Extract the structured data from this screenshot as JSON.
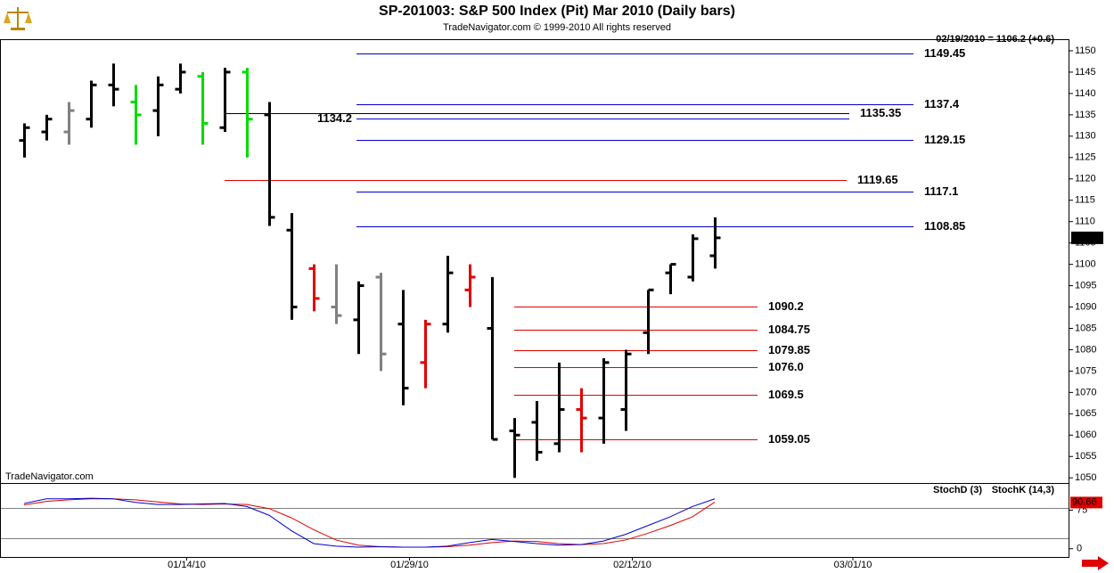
{
  "chart_data": {
    "type": "ohlc",
    "title": "SP-201003:  S&P 500 Index (Pit) Mar 2010  (Daily bars)",
    "subtitle": "TradeNavigator.com © 1999-2010 All rights reserved",
    "watermark": "TradeNavigator.com",
    "last_quote": "02/19/2010 = 1106.2 (+0.6)",
    "xlim": [
      -1.08,
      46.92
    ],
    "xticks": [
      {
        "value": 7.3,
        "label": "01/14/10"
      },
      {
        "value": 17.3,
        "label": "01/29/10"
      },
      {
        "value": 27.3,
        "label": "02/12/10"
      },
      {
        "value": 37.2,
        "label": "03/01/10"
      }
    ],
    "ylim": [
      1049,
      1152.5
    ],
    "yticks": [
      1050,
      1055,
      1060,
      1065,
      1070,
      1075,
      1080,
      1085,
      1090,
      1095,
      1100,
      1105,
      1110,
      1115,
      1120,
      1125,
      1130,
      1135,
      1140,
      1145,
      1150
    ],
    "bars": {
      "x": [
        0,
        1,
        2,
        3,
        4,
        5,
        6,
        7,
        8,
        9,
        10,
        11,
        12,
        13,
        14,
        15,
        16,
        17,
        18,
        19,
        20,
        21,
        22,
        23,
        24,
        25,
        26,
        27,
        28,
        29,
        30,
        31
      ],
      "open": [
        1129,
        1131,
        1131,
        1134,
        1142,
        1138,
        1136,
        1141,
        1144,
        1132,
        1145,
        1135,
        1108,
        1099,
        1090,
        1087,
        1097,
        1086,
        1077,
        1086,
        1094,
        1085,
        1061,
        1063,
        1058,
        1066,
        1064,
        1066,
        1084,
        1098,
        1097,
        1102
      ],
      "high": [
        1133,
        1135,
        1138,
        1143,
        1147,
        1142,
        1144,
        1147,
        1145,
        1146,
        1146,
        1138,
        1112,
        1100,
        1100,
        1096,
        1098,
        1094,
        1087,
        1102,
        1100,
        1097,
        1064,
        1068,
        1077,
        1071,
        1078,
        1080,
        1094,
        1100,
        1107,
        1111
      ],
      "low": [
        1125,
        1129,
        1128,
        1132,
        1137,
        1128,
        1130,
        1140,
        1128,
        1131,
        1125,
        1109,
        1087,
        1089,
        1086,
        1079,
        1075,
        1067,
        1071,
        1084,
        1090,
        1059,
        1050,
        1054,
        1056,
        1056,
        1058,
        1061,
        1079,
        1093,
        1096,
        1099
      ],
      "close": [
        1132,
        1134,
        1136,
        1142,
        1141,
        1135,
        1142,
        1145,
        1133,
        1145,
        1134,
        1111,
        1090,
        1092,
        1088,
        1095,
        1079,
        1071,
        1086,
        1098,
        1097,
        1059,
        1060,
        1056,
        1066,
        1064,
        1077,
        1079,
        1094,
        1100,
        1106,
        1106.2
      ],
      "colors": [
        "#000000",
        "#000000",
        "#808080",
        "#000000",
        "#000000",
        "#00dd00",
        "#000000",
        "#000000",
        "#00dd00",
        "#000000",
        "#00dd00",
        "#000000",
        "#000000",
        "#e00000",
        "#808080",
        "#000000",
        "#808080",
        "#000000",
        "#e00000",
        "#000000",
        "#e00000",
        "#000000",
        "#000000",
        "#000000",
        "#000000",
        "#e00000",
        "#000000",
        "#000000",
        "#000000",
        "#000000",
        "#000000",
        "#000000"
      ]
    },
    "levels": [
      {
        "value": 1149.45,
        "color": "#0000cc",
        "x_range": [
          14.92,
          39.92
        ]
      },
      {
        "value": 1137.4,
        "color": "#0000cc",
        "x_range": [
          14.92,
          39.92
        ]
      },
      {
        "value": 1135.35,
        "color": "#000000",
        "x_range": [
          9,
          37.04
        ]
      },
      {
        "value": 1134.2,
        "color": "#0000cc",
        "x_range": [
          14.92,
          37.04
        ],
        "label_side": "left"
      },
      {
        "value": 1129.15,
        "color": "#0000cc",
        "x_range": [
          14.92,
          39.92
        ]
      },
      {
        "value": 1119.65,
        "color": "#e00000",
        "x_range": [
          9,
          36.92
        ]
      },
      {
        "value": 1117.1,
        "color": "#0000cc",
        "x_range": [
          14.92,
          39.92
        ]
      },
      {
        "value": 1108.85,
        "color": "#0000cc",
        "x_range": [
          14.92,
          39.92
        ]
      },
      {
        "value": 1090.2,
        "color": "#e00000",
        "x_range": [
          22,
          32.92
        ]
      },
      {
        "value": 1084.75,
        "color": "#e00000",
        "x_range": [
          22,
          32.92
        ]
      },
      {
        "value": 1079.85,
        "color": "#e00000",
        "x_range": [
          22,
          32.92
        ]
      },
      {
        "value": 1076,
        "label": "1076.0",
        "color": "#e00000",
        "x_range": [
          22,
          32.92
        ]
      },
      {
        "value": 1069.5,
        "color": "#e00000",
        "x_range": [
          22,
          32.92
        ]
      },
      {
        "value": 1059.05,
        "color": "#e00000",
        "x_range": [
          22,
          32.92
        ]
      }
    ],
    "stoch": {
      "ylim": [
        -16,
        126
      ],
      "yticks": [
        0,
        75
      ],
      "levels": [
        20,
        80
      ],
      "series": [
        {
          "name": "StochD (3)",
          "color": "#e00000",
          "values": [
            85,
            92,
            95,
            97,
            97,
            95,
            91,
            87,
            86,
            87,
            86,
            78,
            60,
            37,
            17,
            7,
            4,
            3,
            3,
            4,
            7,
            12,
            15,
            14,
            10,
            8,
            10,
            17,
            30,
            45,
            62,
            90.66
          ]
        },
        {
          "name": "StochK (14,3)",
          "color": "#0000cc",
          "values": [
            88,
            97,
            97,
            98,
            97,
            90,
            86,
            86,
            87,
            88,
            82,
            65,
            35,
            10,
            5,
            3,
            4,
            3,
            3,
            5,
            12,
            18,
            14,
            10,
            7,
            8,
            15,
            28,
            45,
            62,
            82,
            97
          ]
        }
      ]
    }
  }
}
